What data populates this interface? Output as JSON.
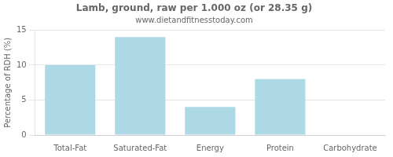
{
  "chart_data": {
    "type": "bar",
    "title": "Lamb, ground, raw per 1.000 oz (or 28.35 g)",
    "subtitle": "www.dietandfitnesstoday.com",
    "categories": [
      "Total-Fat",
      "Saturated-Fat",
      "Energy",
      "Protein",
      "Carbohydrate"
    ],
    "values": [
      10.0,
      14.0,
      4.0,
      8.0,
      0.0
    ],
    "color": "#add8e6",
    "ylabel": "Percentage of RDH (%)",
    "ylim": [
      0,
      15
    ],
    "yticks": [
      0,
      5,
      10,
      15
    ],
    "grid": true
  }
}
